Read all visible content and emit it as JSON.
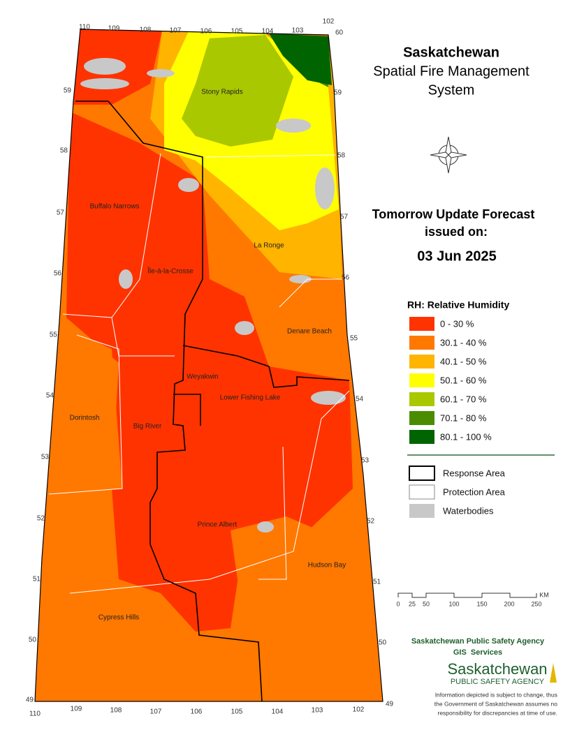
{
  "title": [
    "Saskatchewan",
    "Spatial Fire Management",
    "System"
  ],
  "forecast": {
    "heading": "Tomorrow Update Forecast",
    "issued": "issued on:",
    "date": "03 Jun 2025"
  },
  "legend": {
    "title": "RH: Relative Humidity",
    "classes": [
      {
        "label": "0 - 30 %",
        "color": "#ff3300"
      },
      {
        "label": "30.1 - 40 %",
        "color": "#ff7800"
      },
      {
        "label": "40.1 - 50 %",
        "color": "#ffb400"
      },
      {
        "label": "50.1 - 60 %",
        "color": "#ffff00"
      },
      {
        "label": "60.1 - 70 %",
        "color": "#aac800"
      },
      {
        "label": "70.1 - 80 %",
        "color": "#4c8c00"
      },
      {
        "label": "80.1 - 100 %",
        "color": "#006400"
      }
    ],
    "boundaries": [
      "Response Area",
      "Protection Area",
      "Waterbodies"
    ]
  },
  "places": [
    "Stony Rapids",
    "Buffalo Narrows",
    "La Ronge",
    "Île-à-la-Crosse",
    "Denare Beach",
    "Weyakwin",
    "Lower Fishing Lake",
    "Dorintosh",
    "Big River",
    "Prince Albert",
    "Hudson Bay",
    "Cypress Hills"
  ],
  "longitudes": [
    "110",
    "109",
    "108",
    "107",
    "106",
    "105",
    "104",
    "103",
    "102"
  ],
  "latitudes": [
    "60",
    "59",
    "58",
    "57",
    "56",
    "55",
    "54",
    "53",
    "52",
    "51",
    "50",
    "49"
  ],
  "scale": {
    "ticks": [
      "0",
      "25",
      "50",
      "100",
      "150",
      "200",
      "250"
    ],
    "unit": "KM"
  },
  "agency": {
    "name": "Saskatchewan Public Safety Agency",
    "unit": "GIS  Services",
    "logo": "Saskatchewan",
    "logo_sub": "PUBLIC SAFETY AGENCY"
  },
  "disclaimer": [
    "Information depicted is subject to change, thus",
    "the Government of Saskatchewan assumes no",
    "responsibility for discrepancies at time of use."
  ]
}
